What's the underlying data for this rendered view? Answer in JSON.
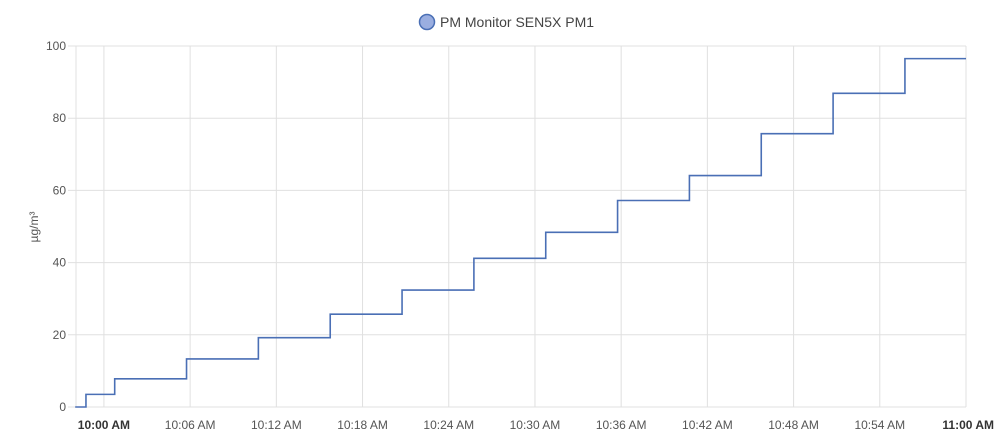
{
  "chart_data": {
    "type": "line",
    "step": true,
    "ylabel": "µg/m³",
    "ylim": [
      0,
      100
    ],
    "yticks": [
      0,
      20,
      40,
      60,
      80,
      100
    ],
    "xlim": [
      "09:57:30",
      "11:00:00"
    ],
    "xticks": [
      {
        "time": "10:00:00",
        "label": "10:00 AM",
        "bold": true
      },
      {
        "time": "10:06:00",
        "label": "10:06 AM",
        "bold": false
      },
      {
        "time": "10:12:00",
        "label": "10:12 AM",
        "bold": false
      },
      {
        "time": "10:18:00",
        "label": "10:18 AM",
        "bold": false
      },
      {
        "time": "10:24:00",
        "label": "10:24 AM",
        "bold": false
      },
      {
        "time": "10:30:00",
        "label": "10:30 AM",
        "bold": false
      },
      {
        "time": "10:36:00",
        "label": "10:36 AM",
        "bold": false
      },
      {
        "time": "10:42:00",
        "label": "10:42 AM",
        "bold": false
      },
      {
        "time": "10:48:00",
        "label": "10:48 AM",
        "bold": false
      },
      {
        "time": "10:54:00",
        "label": "10:54 AM",
        "bold": false
      },
      {
        "time": "11:00:00",
        "label": "11:00 AM",
        "bold": true
      }
    ],
    "grid": true,
    "legend_position": "top-center",
    "series": [
      {
        "name": "PM Monitor SEN5X PM1",
        "color": "#4a6fb5",
        "legend_fill": "#9aaee0",
        "points": [
          {
            "x": "09:58:00",
            "y": 0
          },
          {
            "x": "09:58:45",
            "y": 3.5
          },
          {
            "x": "10:00:45",
            "y": 7.8
          },
          {
            "x": "10:05:45",
            "y": 13.3
          },
          {
            "x": "10:10:45",
            "y": 19.2
          },
          {
            "x": "10:15:45",
            "y": 25.7
          },
          {
            "x": "10:20:45",
            "y": 32.4
          },
          {
            "x": "10:25:45",
            "y": 41.2
          },
          {
            "x": "10:30:45",
            "y": 48.4
          },
          {
            "x": "10:35:45",
            "y": 57.2
          },
          {
            "x": "10:40:45",
            "y": 64.1
          },
          {
            "x": "10:45:45",
            "y": 75.7
          },
          {
            "x": "10:50:45",
            "y": 86.9
          },
          {
            "x": "10:55:45",
            "y": 96.5
          },
          {
            "x": "11:00:00",
            "y": 96.5
          }
        ]
      }
    ]
  }
}
